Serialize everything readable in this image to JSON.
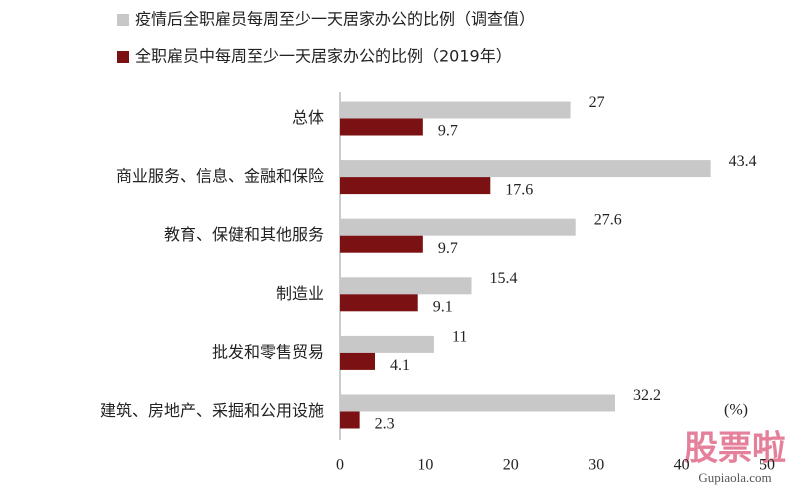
{
  "chart_data": {
    "type": "hbar",
    "categories": [
      "总体",
      "商业服务、信息、金融和保险",
      "教育、保健和其他服务",
      "制造业",
      "批发和零售贸易",
      "建筑、房地产、采掘和公用设施"
    ],
    "series": [
      {
        "name": "疫情后全职雇员每周至少一天居家办公的比例（调查值）",
        "color": "#c8c8c8",
        "values": [
          27,
          43.4,
          27.6,
          15.4,
          11,
          32.2
        ]
      },
      {
        "name": "全职雇员中每周至少一天居家办公的比例（2019年）",
        "color": "#7b1113",
        "values": [
          9.7,
          17.6,
          9.7,
          9.1,
          4.1,
          2.3
        ]
      }
    ],
    "xlim": [
      0,
      50
    ],
    "xticks": [
      0,
      10,
      20,
      30,
      40,
      50
    ],
    "xlabel": "(%)"
  },
  "watermark": {
    "logo": "股票啦",
    "url": "Gupiaola.com"
  }
}
